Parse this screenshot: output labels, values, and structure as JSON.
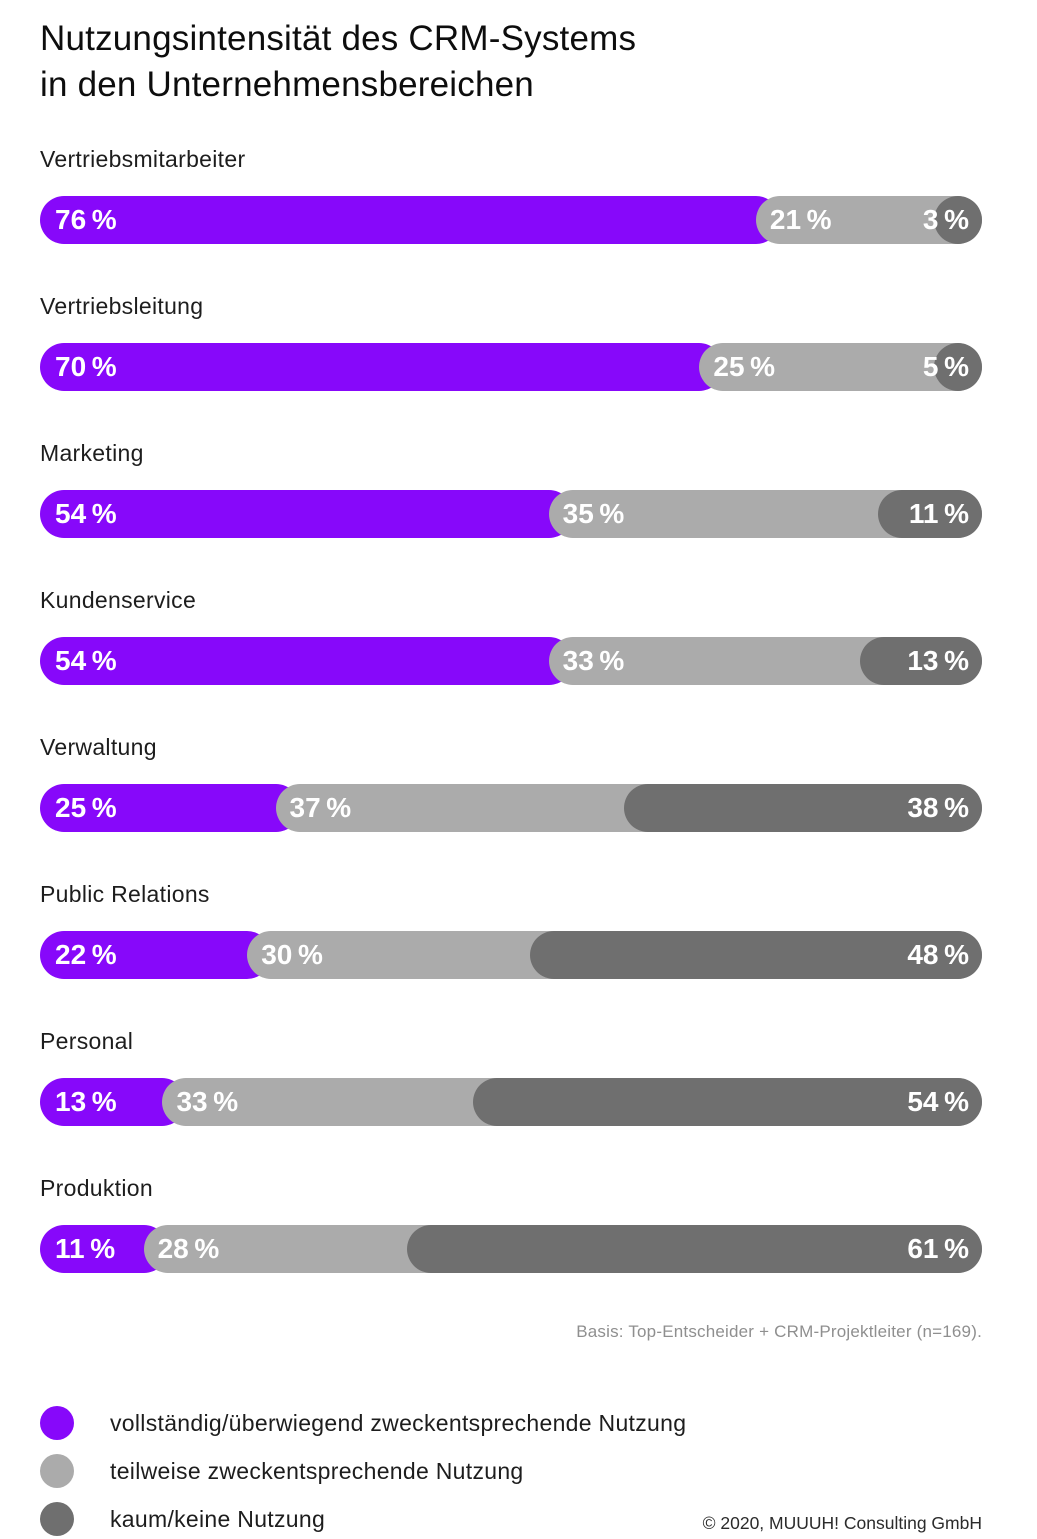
{
  "page": {
    "title_line1": "Nutzungsintensität des CRM-Systems",
    "title_line2": "in den Unternehmensbereichen",
    "basis_note": "Basis: Top-Entscheider + CRM-Projektleiter (n=169).",
    "copyright": "© 2020, MUUUH! Consulting GmbH"
  },
  "colors": {
    "full_usage": "#8708FA",
    "partial_usage": "#ABABAB",
    "no_usage": "#6F6F6F",
    "value_text": "#FFFFFF",
    "background": "#FFFFFF"
  },
  "legend": {
    "items": [
      {
        "key": "full_usage",
        "color": "#8708FA",
        "label": "vollständig/überwiegend zweckentsprechende Nutzung"
      },
      {
        "key": "partial_usage",
        "color": "#ABABAB",
        "label": "teilweise zweckentsprechende Nutzung"
      },
      {
        "key": "no_usage",
        "color": "#6F6F6F",
        "label": "kaum/keine Nutzung"
      }
    ]
  },
  "chart_data": {
    "type": "bar",
    "orientation": "horizontal",
    "stacked": true,
    "unit": "%",
    "xlim": [
      0,
      100
    ],
    "title": "Nutzungsintensität des CRM-Systems in den Unternehmensbereichen",
    "source": "Basis: Top-Entscheider + CRM-Projektleiter (n=169).",
    "value_suffix": " %",
    "categories": [
      "Vertriebsmitarbeiter",
      "Vertriebsleitung",
      "Marketing",
      "Kundenservice",
      "Verwaltung",
      "Public Relations",
      "Personal",
      "Produktion"
    ],
    "series": [
      {
        "name": "vollständig/überwiegend zweckentsprechende Nutzung",
        "color": "#8708FA",
        "values": [
          76,
          70,
          54,
          54,
          25,
          22,
          13,
          11
        ]
      },
      {
        "name": "teilweise zweckentsprechende Nutzung",
        "color": "#ABABAB",
        "values": [
          21,
          25,
          35,
          33,
          37,
          30,
          33,
          28
        ]
      },
      {
        "name": "kaum/keine Nutzung",
        "color": "#6F6F6F",
        "values": [
          3,
          5,
          11,
          13,
          38,
          48,
          54,
          61
        ]
      }
    ]
  }
}
